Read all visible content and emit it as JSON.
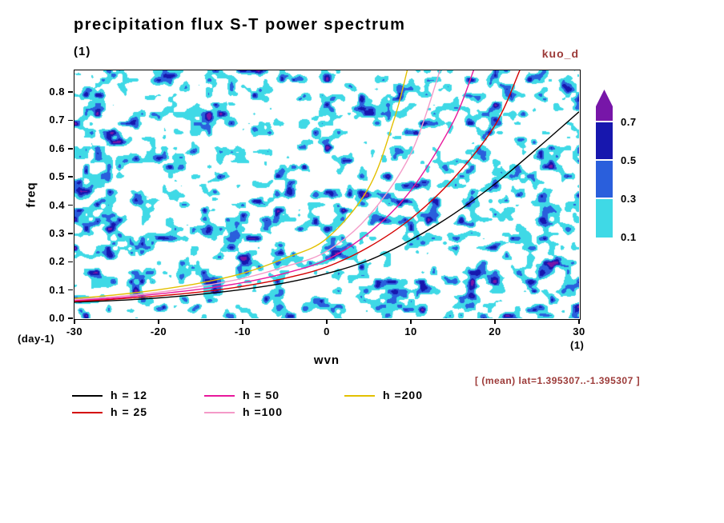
{
  "colors": {
    "annotation": "#9c3a38",
    "frame": "#000000",
    "background": "#ffffff"
  },
  "header": {
    "title": "precipitation flux S-T power spectrum",
    "subtitle": "(1)",
    "run_label": "kuo_d"
  },
  "chart_data": {
    "type": "heatmap",
    "title": "precipitation flux S-T power spectrum",
    "xlabel": "wvn",
    "x_unit": "(1)",
    "ylabel": "freq",
    "y_unit": "(day-1)",
    "xlim": [
      -30,
      30
    ],
    "ylim": [
      0,
      0.876
    ],
    "grid": false,
    "legend_position": "bottom",
    "x_ticks": [
      -30,
      -20,
      -10,
      0,
      10,
      20,
      30
    ],
    "x_tick_labels": [
      "-30",
      "-20",
      "-10",
      "0",
      "10",
      "20",
      "30"
    ],
    "y_ticks": [
      0.0,
      0.1,
      0.2,
      0.3,
      0.4,
      0.5,
      0.6,
      0.7,
      0.8
    ],
    "y_tick_labels": [
      "0.0",
      "0.1",
      "0.2",
      "0.3",
      "0.4",
      "0.5",
      "0.6",
      "0.7",
      "0.8"
    ],
    "field": {
      "description": "speckled space-time spectral power field, random small blobs over white background",
      "levels": [
        0.1,
        0.3,
        0.5,
        0.7
      ],
      "band_colors": [
        "#3fd9e6",
        "#2a5fdc",
        "#1717ae",
        "#7716a8"
      ]
    },
    "colorbar": {
      "labels": [
        "0.1",
        "0.3",
        "0.5",
        "0.7"
      ],
      "colors": [
        "#3fd9e6",
        "#2a5fdc",
        "#1717ae",
        "#7716a8"
      ],
      "arrow_top": true
    },
    "series": [
      {
        "id": "h12",
        "name": "h = 12",
        "color": "#000000",
        "points": [
          [
            -30,
            0.057
          ],
          [
            -25,
            0.063
          ],
          [
            -20,
            0.072
          ],
          [
            -15,
            0.085
          ],
          [
            -10,
            0.102
          ],
          [
            -5,
            0.125
          ],
          [
            0,
            0.158
          ],
          [
            5,
            0.205
          ],
          [
            10,
            0.277
          ],
          [
            15,
            0.367
          ],
          [
            20,
            0.475
          ],
          [
            25,
            0.6
          ],
          [
            30,
            0.73
          ]
        ]
      },
      {
        "id": "h25",
        "name": "h = 25",
        "color": "#d40000",
        "points": [
          [
            -30,
            0.06
          ],
          [
            -25,
            0.068
          ],
          [
            -20,
            0.079
          ],
          [
            -15,
            0.093
          ],
          [
            -10,
            0.113
          ],
          [
            -5,
            0.141
          ],
          [
            0,
            0.182
          ],
          [
            5,
            0.252
          ],
          [
            10,
            0.352
          ],
          [
            15,
            0.492
          ],
          [
            20,
            0.682
          ],
          [
            23,
            0.88
          ]
        ]
      },
      {
        "id": "h50",
        "name": "h = 50",
        "color": "#e8189c",
        "points": [
          [
            -30,
            0.063
          ],
          [
            -25,
            0.072
          ],
          [
            -20,
            0.086
          ],
          [
            -15,
            0.103
          ],
          [
            -10,
            0.126
          ],
          [
            -5,
            0.159
          ],
          [
            0,
            0.207
          ],
          [
            5,
            0.302
          ],
          [
            10,
            0.452
          ],
          [
            15,
            0.692
          ],
          [
            17.5,
            0.88
          ]
        ]
      },
      {
        "id": "h100",
        "name": "h =100",
        "color": "#f49ac8",
        "points": [
          [
            -30,
            0.066
          ],
          [
            -25,
            0.077
          ],
          [
            -20,
            0.092
          ],
          [
            -15,
            0.113
          ],
          [
            -10,
            0.141
          ],
          [
            -5,
            0.182
          ],
          [
            0,
            0.237
          ],
          [
            5,
            0.362
          ],
          [
            10,
            0.582
          ],
          [
            13.5,
            0.88
          ]
        ]
      },
      {
        "id": "h200",
        "name": "h =200",
        "color": "#e3c000",
        "points": [
          [
            -30,
            0.07
          ],
          [
            -25,
            0.083
          ],
          [
            -20,
            0.101
          ],
          [
            -15,
            0.125
          ],
          [
            -10,
            0.159
          ],
          [
            -5,
            0.212
          ],
          [
            0,
            0.282
          ],
          [
            5,
            0.462
          ],
          [
            8,
            0.702
          ],
          [
            9.6,
            0.88
          ]
        ]
      }
    ],
    "annotation": "[ (mean) lat=1.395307..-1.395307 ]"
  }
}
